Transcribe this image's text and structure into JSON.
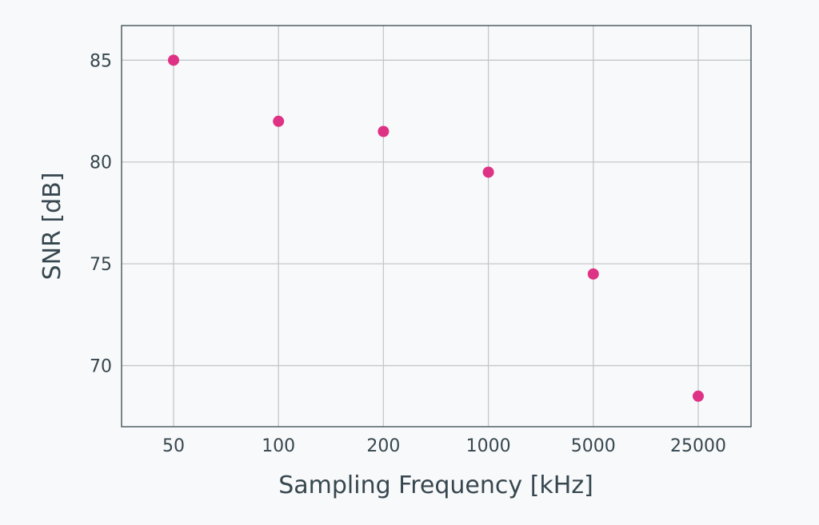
{
  "chart_data": {
    "type": "scatter",
    "title": "",
    "xlabel": "Sampling Frequency [kHz]",
    "ylabel": "SNR [dB]",
    "x_scale": "categorical",
    "categories": [
      "50",
      "100",
      "200",
      "1000",
      "5000",
      "25000"
    ],
    "series": [
      {
        "values": [
          85,
          82,
          81.5,
          79.5,
          74.5,
          68.5
        ]
      }
    ],
    "yticks": [
      70,
      75,
      80,
      85
    ],
    "ylim": [
      67,
      86.7
    ],
    "grid": true,
    "legend": "none"
  },
  "colors": {
    "marker": "#de3284",
    "background": "#f8f9fa",
    "grid": "#c4c7ca",
    "axis": "#37474f"
  }
}
